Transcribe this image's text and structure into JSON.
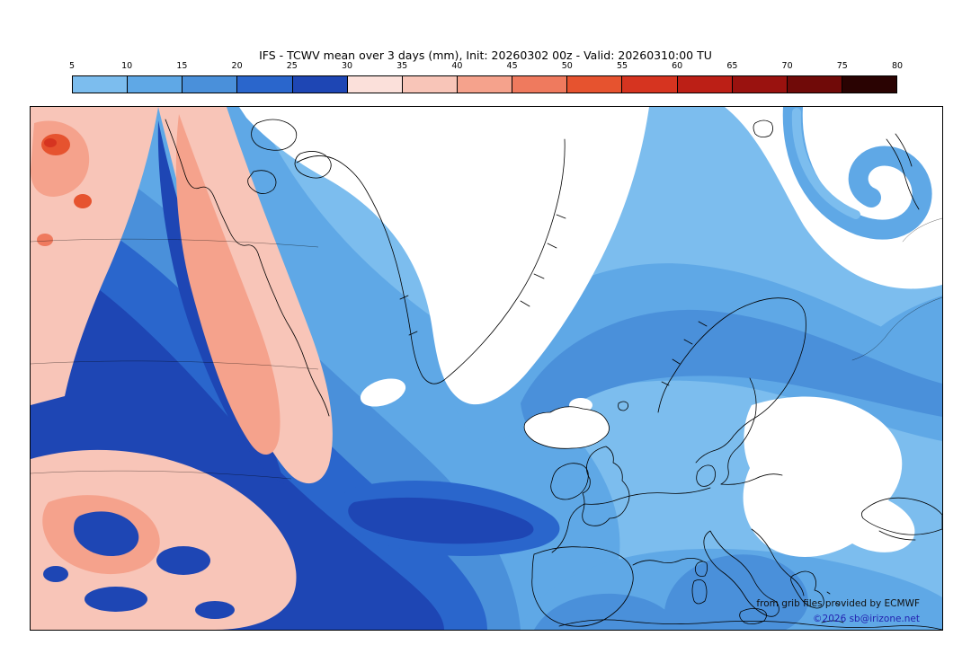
{
  "page": {
    "title": "IFS - TCWV mean over 3 days (mm), Init: 20260302 00z - Valid: 20260310:00 TU"
  },
  "colorbar": {
    "units": "mm",
    "min": 5,
    "max": 80,
    "step": 5,
    "tick_labels": [
      "5",
      "10",
      "15",
      "20",
      "25",
      "30",
      "35",
      "40",
      "45",
      "50",
      "55",
      "60",
      "65",
      "70",
      "75",
      "80"
    ],
    "segment_colors": [
      "#7cbdee",
      "#5fa8e6",
      "#4a90da",
      "#2a66cc",
      "#1e46b4",
      "#fbe0da",
      "#f8c5b8",
      "#f5a28c",
      "#ef7a5e",
      "#e6532f",
      "#d63420",
      "#bc1f16",
      "#9a120f",
      "#700a08",
      "#2a0302"
    ]
  },
  "map": {
    "attribution_line1": "from grib files provided by ECMWF",
    "attribution_line2": "©2026 sb@irizone.net"
  },
  "chart_data": {
    "type": "heatmap",
    "title": "IFS - TCWV mean over 3 days (mm), Init: 20260302 00z - Valid: 20260310:00 TU",
    "variable": "TCWV mean over 3 days",
    "units": "mm",
    "model": "IFS",
    "init": "20260302 00z",
    "valid": "20260310:00 TU",
    "scale_ticks": [
      5,
      10,
      15,
      20,
      25,
      30,
      35,
      40,
      45,
      50,
      55,
      60,
      65,
      70,
      75,
      80
    ],
    "scale_colors": [
      "#7cbdee",
      "#5fa8e6",
      "#4a90da",
      "#2a66cc",
      "#1e46b4",
      "#fbe0da",
      "#f8c5b8",
      "#f5a28c",
      "#ef7a5e",
      "#e6532f",
      "#d63420",
      "#bc1f16",
      "#9a120f",
      "#700a08",
      "#2a0302"
    ],
    "legend_position": "top"
  }
}
